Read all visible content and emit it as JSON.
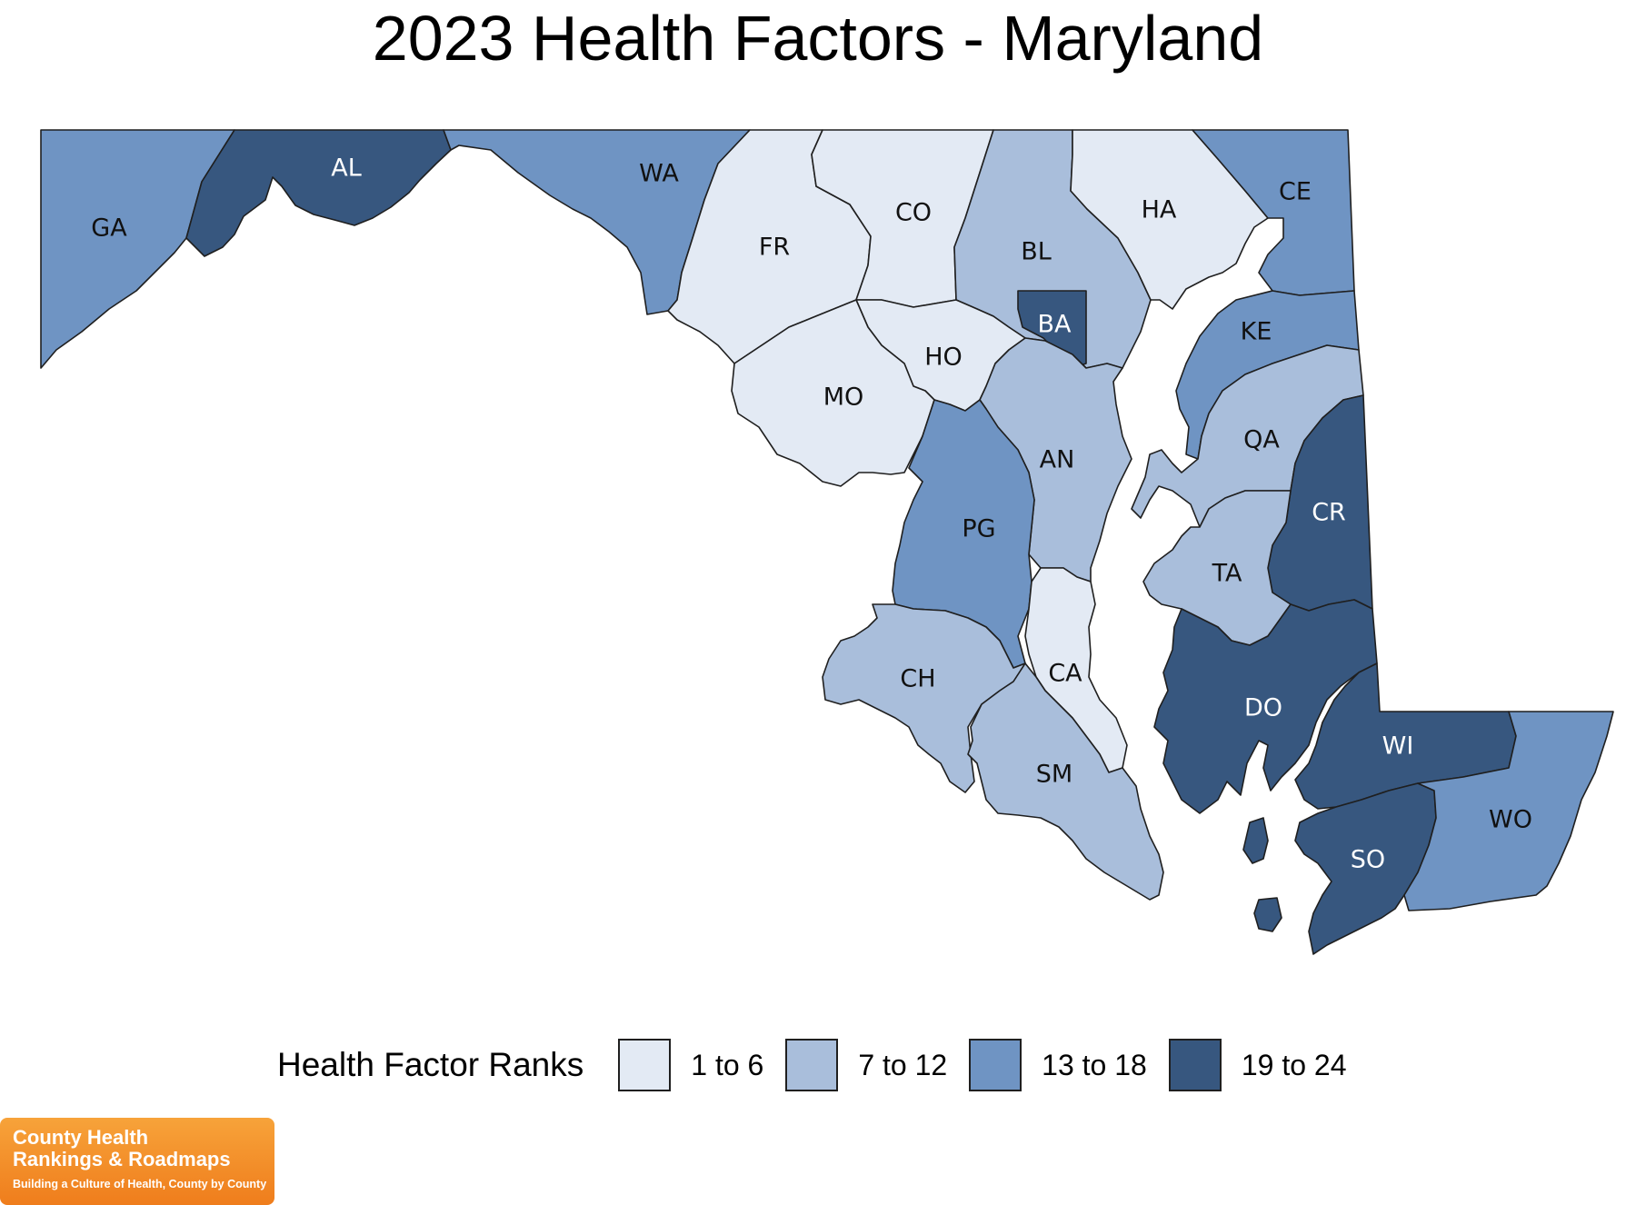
{
  "title": "2023 Health Factors - Maryland",
  "legend": {
    "title": "Health Factor Ranks",
    "items": [
      {
        "label": "1 to 6",
        "color": "#e3eaf4"
      },
      {
        "label": "7 to 12",
        "color": "#a9bedb"
      },
      {
        "label": "13 to 18",
        "color": "#6f94c3"
      },
      {
        "label": "19 to 24",
        "color": "#37577f"
      }
    ]
  },
  "counties": [
    {
      "code": "GA",
      "rank_group": "13 to 18"
    },
    {
      "code": "AL",
      "rank_group": "19 to 24"
    },
    {
      "code": "WA",
      "rank_group": "13 to 18"
    },
    {
      "code": "FR",
      "rank_group": "1 to 6"
    },
    {
      "code": "CO",
      "rank_group": "1 to 6"
    },
    {
      "code": "BL",
      "rank_group": "7 to 12"
    },
    {
      "code": "HA",
      "rank_group": "1 to 6"
    },
    {
      "code": "CE",
      "rank_group": "13 to 18"
    },
    {
      "code": "BA",
      "rank_group": "19 to 24"
    },
    {
      "code": "KE",
      "rank_group": "13 to 18"
    },
    {
      "code": "HO",
      "rank_group": "1 to 6"
    },
    {
      "code": "MO",
      "rank_group": "1 to 6"
    },
    {
      "code": "AN",
      "rank_group": "7 to 12"
    },
    {
      "code": "QA",
      "rank_group": "7 to 12"
    },
    {
      "code": "CR",
      "rank_group": "19 to 24"
    },
    {
      "code": "PG",
      "rank_group": "13 to 18"
    },
    {
      "code": "TA",
      "rank_group": "7 to 12"
    },
    {
      "code": "CA",
      "rank_group": "1 to 6"
    },
    {
      "code": "CH",
      "rank_group": "7 to 12"
    },
    {
      "code": "DO",
      "rank_group": "19 to 24"
    },
    {
      "code": "WI",
      "rank_group": "19 to 24"
    },
    {
      "code": "SM",
      "rank_group": "7 to 12"
    },
    {
      "code": "SO",
      "rank_group": "19 to 24"
    },
    {
      "code": "WO",
      "rank_group": "13 to 18"
    }
  ],
  "logo": {
    "line1": "County Health",
    "line2": "Rankings & Roadmaps",
    "tagline": "Building a Culture of Health, County by County"
  }
}
